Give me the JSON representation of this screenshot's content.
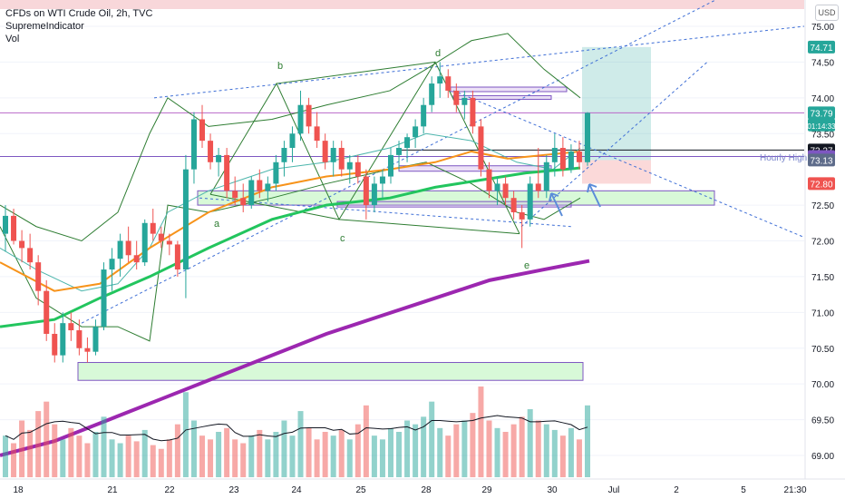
{
  "header": {
    "symbol_line": "CFDs on WTI Crude Oil, 2h, TVC",
    "indicator_1": "SupremeIndicator",
    "indicator_2": "Vol",
    "currency": "USD"
  },
  "chart_data": {
    "type": "candlestick",
    "title": "CFDs on WTI Crude Oil, 2h, TVC",
    "ylim": [
      68.8,
      75.25
    ],
    "y_ticks": [
      "75.00",
      "74.50",
      "74.00",
      "73.50",
      "72.50",
      "72.00",
      "71.50",
      "71.00",
      "70.50",
      "70.00",
      "69.50",
      "69.00"
    ],
    "x_ticks": [
      "18",
      "21",
      "22",
      "23",
      "24",
      "25",
      "28",
      "29",
      "30",
      "Jul",
      "2",
      "5",
      "21:30"
    ],
    "price_labels": [
      {
        "text": "74.71",
        "value": 74.71,
        "color": "#26a69a"
      },
      {
        "text": "73.79",
        "value": 73.79,
        "color": "#26a69a"
      },
      {
        "text": "01:14:33",
        "value": 73.62,
        "color": "#26a69a"
      },
      {
        "text": "73.27",
        "value": 73.27,
        "color": "#131722"
      },
      {
        "text": "73.18",
        "value": 73.18,
        "color": "#7e57c2"
      },
      {
        "text": "73.13",
        "value": 73.13,
        "color": "#5d6b8a"
      },
      {
        "text": "72.80",
        "value": 72.8,
        "color": "#ef5350"
      }
    ],
    "annotations": [
      "a",
      "b",
      "c",
      "d",
      "e",
      "Hourly High"
    ],
    "candles": [
      [
        72.1,
        72.5,
        71.85,
        72.35
      ],
      [
        72.35,
        72.45,
        71.95,
        72.0
      ],
      [
        72.0,
        72.15,
        71.7,
        71.9
      ],
      [
        71.9,
        72.1,
        71.6,
        71.7
      ],
      [
        71.7,
        71.8,
        71.1,
        71.3
      ],
      [
        71.3,
        71.45,
        70.6,
        70.7
      ],
      [
        70.7,
        70.85,
        70.3,
        70.4
      ],
      [
        70.4,
        71.0,
        70.3,
        70.85
      ],
      [
        70.85,
        71.0,
        70.6,
        70.75
      ],
      [
        70.75,
        70.9,
        70.4,
        70.5
      ],
      [
        70.5,
        70.65,
        70.3,
        70.45
      ],
      [
        70.45,
        70.9,
        70.4,
        70.8
      ],
      [
        70.8,
        71.7,
        70.75,
        71.6
      ],
      [
        71.6,
        71.9,
        71.3,
        71.75
      ],
      [
        71.75,
        72.1,
        71.5,
        72.0
      ],
      [
        72.0,
        72.2,
        71.7,
        71.8
      ],
      [
        71.8,
        72.0,
        71.6,
        71.7
      ],
      [
        71.7,
        72.3,
        71.65,
        72.25
      ],
      [
        72.25,
        72.45,
        72.0,
        72.1
      ],
      [
        72.1,
        72.2,
        71.9,
        72.0
      ],
      [
        72.0,
        72.1,
        71.8,
        71.95
      ],
      [
        71.95,
        72.0,
        71.5,
        71.6
      ],
      [
        71.6,
        73.2,
        71.2,
        73.0
      ],
      [
        73.0,
        73.8,
        72.8,
        73.7
      ],
      [
        73.7,
        73.9,
        73.3,
        73.4
      ],
      [
        73.4,
        73.5,
        73.0,
        73.1
      ],
      [
        73.1,
        73.3,
        72.9,
        73.2
      ],
      [
        73.2,
        73.3,
        72.6,
        72.7
      ],
      [
        72.7,
        72.9,
        72.5,
        72.6
      ],
      [
        72.6,
        72.8,
        72.4,
        72.5
      ],
      [
        72.5,
        72.9,
        72.45,
        72.85
      ],
      [
        72.85,
        73.0,
        72.6,
        72.7
      ],
      [
        72.7,
        72.9,
        72.55,
        72.8
      ],
      [
        72.8,
        73.2,
        72.7,
        73.1
      ],
      [
        73.1,
        73.4,
        72.9,
        73.3
      ],
      [
        73.3,
        73.6,
        73.1,
        73.5
      ],
      [
        73.5,
        74.1,
        73.4,
        73.9
      ],
      [
        73.9,
        74.0,
        73.5,
        73.6
      ],
      [
        73.6,
        73.8,
        73.3,
        73.4
      ],
      [
        73.4,
        73.5,
        73.0,
        73.1
      ],
      [
        73.1,
        73.4,
        72.9,
        73.3
      ],
      [
        73.3,
        73.4,
        72.9,
        73.0
      ],
      [
        73.0,
        73.2,
        72.8,
        73.1
      ],
      [
        73.1,
        73.2,
        72.8,
        72.9
      ],
      [
        72.9,
        73.0,
        72.3,
        72.5
      ],
      [
        72.5,
        72.9,
        72.4,
        72.8
      ],
      [
        72.8,
        73.0,
        72.6,
        72.9
      ],
      [
        72.9,
        73.3,
        72.8,
        73.2
      ],
      [
        73.2,
        73.4,
        73.0,
        73.3
      ],
      [
        73.3,
        73.5,
        73.1,
        73.45
      ],
      [
        73.45,
        73.7,
        73.3,
        73.6
      ],
      [
        73.6,
        74.0,
        73.5,
        73.9
      ],
      [
        73.9,
        74.3,
        73.8,
        74.2
      ],
      [
        74.2,
        74.5,
        74.0,
        74.3
      ],
      [
        74.3,
        74.4,
        74.0,
        74.1
      ],
      [
        74.1,
        74.2,
        73.8,
        73.9
      ],
      [
        73.9,
        74.1,
        73.7,
        74.0
      ],
      [
        74.0,
        74.1,
        73.5,
        73.6
      ],
      [
        73.6,
        73.7,
        72.9,
        73.0
      ],
      [
        73.0,
        73.1,
        72.6,
        72.7
      ],
      [
        72.7,
        72.9,
        72.5,
        72.8
      ],
      [
        72.8,
        72.9,
        72.5,
        72.6
      ],
      [
        72.6,
        72.7,
        72.3,
        72.4
      ],
      [
        72.4,
        72.5,
        71.9,
        72.3
      ],
      [
        72.3,
        72.9,
        72.2,
        72.8
      ],
      [
        72.8,
        73.3,
        72.6,
        72.7
      ],
      [
        72.7,
        73.2,
        72.6,
        73.1
      ],
      [
        73.1,
        73.5,
        72.9,
        73.3
      ],
      [
        73.3,
        73.45,
        72.9,
        73.0
      ],
      [
        73.0,
        73.35,
        72.95,
        73.25
      ],
      [
        73.25,
        73.4,
        73.0,
        73.1
      ],
      [
        73.1,
        73.8,
        73.05,
        73.79
      ]
    ],
    "volume": [
      22,
      18,
      30,
      25,
      35,
      40,
      28,
      20,
      26,
      22,
      18,
      24,
      32,
      20,
      18,
      22,
      19,
      25,
      17,
      15,
      20,
      28,
      45,
      30,
      22,
      20,
      24,
      26,
      20,
      18,
      22,
      25,
      20,
      24,
      30,
      22,
      35,
      26,
      20,
      24,
      22,
      25,
      20,
      28,
      38,
      22,
      20,
      26,
      24,
      30,
      28,
      32,
      40,
      26,
      22,
      28,
      30,
      34,
      48,
      30,
      26,
      24,
      28,
      32,
      36,
      30,
      28,
      25,
      22,
      26,
      20,
      38
    ],
    "series": [
      {
        "name": "",
        "color": "#f7931a"
      },
      {
        "name": "",
        "color": "#22c55e"
      },
      {
        "name": "",
        "color": "#9c27b0"
      }
    ]
  }
}
